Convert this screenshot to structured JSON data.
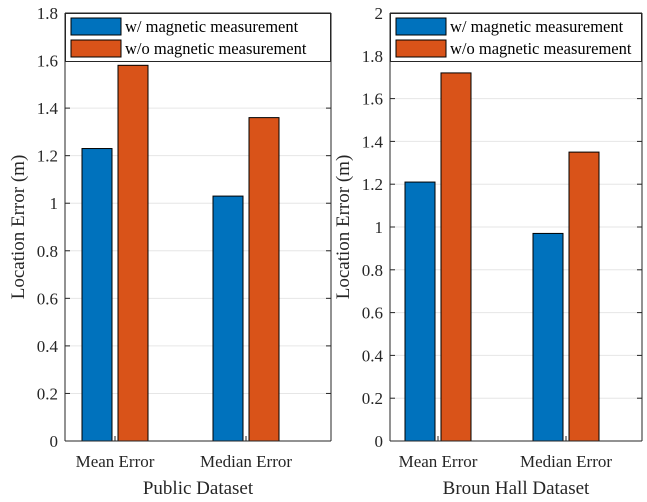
{
  "colors": {
    "series1": "#0072BD",
    "series2": "#D95319",
    "axis": "#262626",
    "grid": "#e6e6e6"
  },
  "chart_data": [
    {
      "type": "bar",
      "xlabel": "Public Dataset",
      "ylabel": "Location Error (m)",
      "categories": [
        "Mean Error",
        "Median Error"
      ],
      "ylim": [
        0,
        1.8
      ],
      "yticks": [
        "0",
        "0.2",
        "0.4",
        "0.6",
        "0.8",
        "1",
        "1.2",
        "1.4",
        "1.6",
        "1.8"
      ],
      "grid": true,
      "legend_position": "top",
      "series": [
        {
          "name": "w/ magnetic measurement",
          "values": [
            1.23,
            1.03
          ]
        },
        {
          "name": "w/o magnetic measurement",
          "values": [
            1.58,
            1.36
          ]
        }
      ]
    },
    {
      "type": "bar",
      "xlabel": "Broun Hall Dataset",
      "ylabel": "Location Error (m)",
      "categories": [
        "Mean Error",
        "Median Error"
      ],
      "ylim": [
        0,
        2
      ],
      "yticks": [
        "0",
        "0.2",
        "0.4",
        "0.6",
        "0.8",
        "1",
        "1.2",
        "1.4",
        "1.6",
        "1.8",
        "2"
      ],
      "grid": true,
      "legend_position": "top",
      "series": [
        {
          "name": "w/ magnetic measurement",
          "values": [
            1.21,
            0.97
          ]
        },
        {
          "name": "w/o magnetic measurement",
          "values": [
            1.72,
            1.35
          ]
        }
      ]
    }
  ]
}
